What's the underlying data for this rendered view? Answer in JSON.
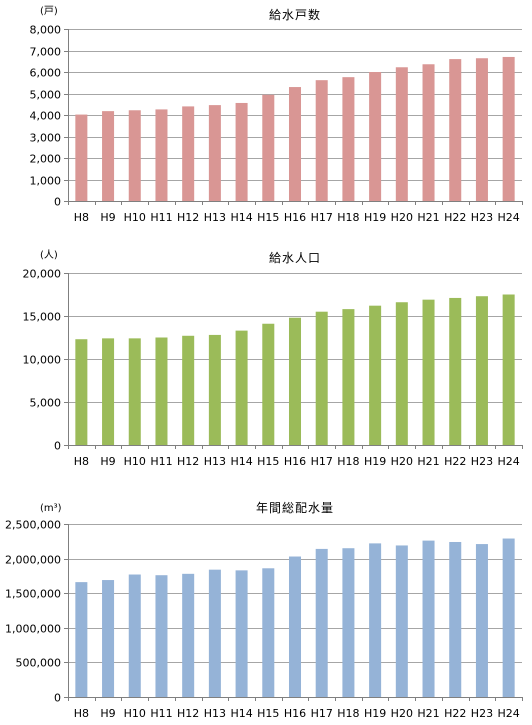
{
  "chart_data": [
    {
      "type": "bar",
      "title": "給水戸数",
      "unit": "(戸)",
      "categories": [
        "H8",
        "H9",
        "H10",
        "H11",
        "H12",
        "H13",
        "H14",
        "H15",
        "H16",
        "H17",
        "H18",
        "H19",
        "H20",
        "H21",
        "H22",
        "H23",
        "H24"
      ],
      "values": [
        4020,
        4180,
        4220,
        4260,
        4400,
        4460,
        4560,
        4940,
        5300,
        5620,
        5760,
        6000,
        6220,
        6360,
        6600,
        6640,
        6700
      ],
      "ylim": [
        0,
        8000
      ],
      "yticks": [
        0,
        1000,
        2000,
        3000,
        4000,
        5000,
        6000,
        7000,
        8000
      ],
      "ytick_labels": [
        "0",
        "1,000",
        "2,000",
        "3,000",
        "4,000",
        "5,000",
        "6,000",
        "7,000",
        "8,000"
      ],
      "grid": true,
      "color": "#d99694"
    },
    {
      "type": "bar",
      "title": "給水人口",
      "unit": "(人)",
      "categories": [
        "H8",
        "H9",
        "H10",
        "H11",
        "H12",
        "H13",
        "H14",
        "H15",
        "H16",
        "H17",
        "H18",
        "H19",
        "H20",
        "H21",
        "H22",
        "H23",
        "H24"
      ],
      "values": [
        12300,
        12400,
        12400,
        12500,
        12700,
        12800,
        13300,
        14100,
        14800,
        15500,
        15800,
        16200,
        16600,
        16900,
        17100,
        17300,
        17500
      ],
      "ylim": [
        0,
        20000
      ],
      "yticks": [
        0,
        5000,
        10000,
        15000,
        20000
      ],
      "ytick_labels": [
        "0",
        "5,000",
        "10,000",
        "15,000",
        "20,000"
      ],
      "grid": true,
      "color": "#9bbb59"
    },
    {
      "type": "bar",
      "title": "年間総配水量",
      "unit": "(m³)",
      "categories": [
        "H8",
        "H9",
        "H10",
        "H11",
        "H12",
        "H13",
        "H14",
        "H15",
        "H16",
        "H17",
        "H18",
        "H19",
        "H20",
        "H21",
        "H22",
        "H23",
        "H24"
      ],
      "values": [
        1660000,
        1690000,
        1770000,
        1760000,
        1780000,
        1840000,
        1830000,
        1860000,
        2030000,
        2140000,
        2150000,
        2220000,
        2190000,
        2260000,
        2240000,
        2210000,
        2290000
      ],
      "ylim": [
        0,
        2500000
      ],
      "yticks": [
        0,
        500000,
        1000000,
        1500000,
        2000000,
        2500000
      ],
      "ytick_labels": [
        "0",
        "500,000",
        "1,000,000",
        "1,500,000",
        "2,000,000",
        "2,500,000"
      ],
      "grid": true,
      "color": "#95b3d7"
    }
  ]
}
